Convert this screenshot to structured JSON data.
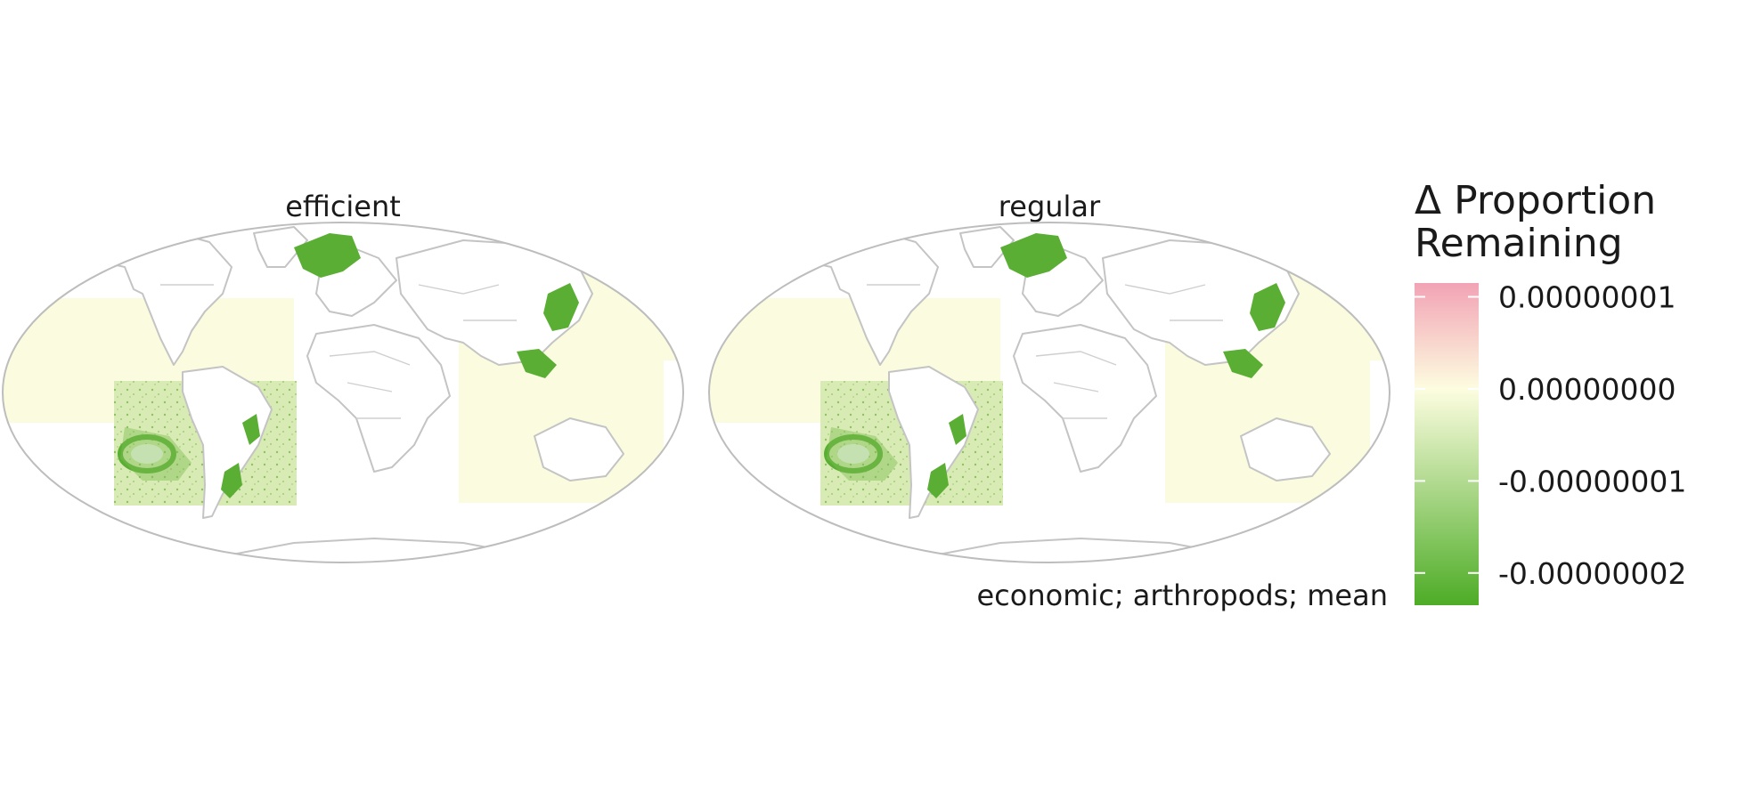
{
  "panels": [
    {
      "id": "efficient",
      "title": "efficient"
    },
    {
      "id": "regular",
      "title": "regular"
    }
  ],
  "caption": "economic; arthropods; mean",
  "legend": {
    "title_lines": [
      "Δ Proportion",
      "Remaining"
    ],
    "ticks": [
      {
        "label": "0.00000001",
        "value": 1e-08
      },
      {
        "label": "0.00000000",
        "value": 0
      },
      {
        "label": "-0.00000001",
        "value": -1e-08
      },
      {
        "label": "-0.00000002",
        "value": -2e-08
      }
    ],
    "range": [
      -2.35e-08,
      1.15e-08
    ],
    "colors": {
      "positive": "#f2a3b5",
      "zero": "#fdfde0",
      "negative": "#4dac26"
    }
  },
  "colors": {
    "land": "#ffffff",
    "borders": "#c4c4c4",
    "ocean_neutral": "#fbfbdf",
    "hotspot": "#5aae34"
  },
  "projection": "Mollweide"
}
